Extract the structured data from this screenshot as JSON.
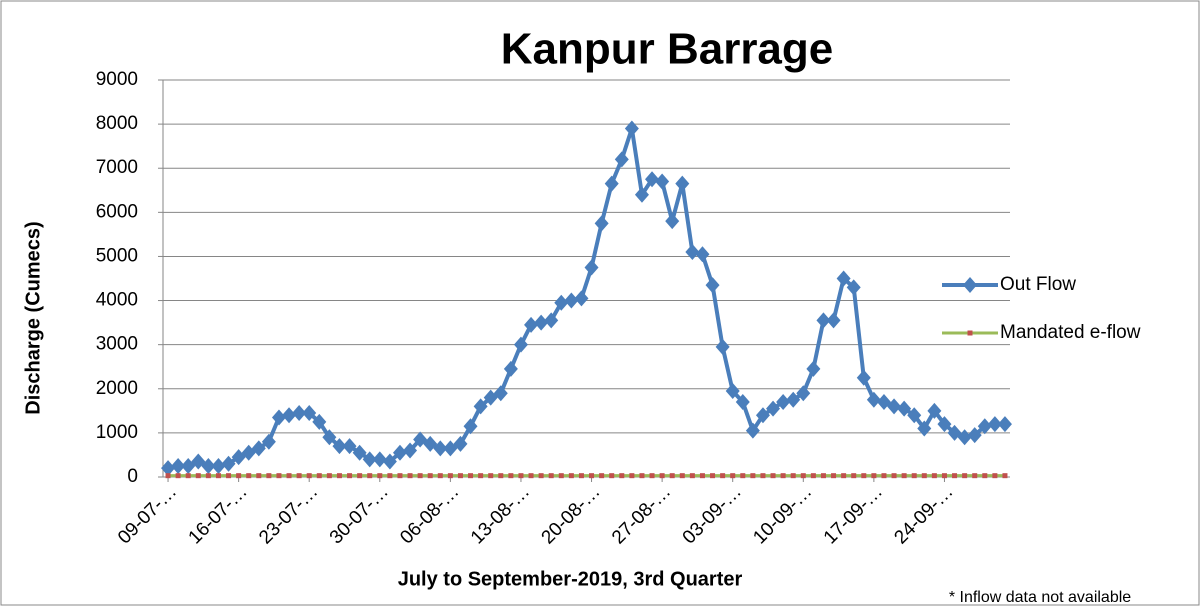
{
  "chart_data": {
    "type": "line",
    "title": "Kanpur Barrage",
    "y_label": "Discharge (Cumecs)",
    "x_label": "July to September-2019, 3rd Quarter",
    "note": "* Inflow data not available",
    "categories": [
      "09-07-…",
      null,
      null,
      null,
      null,
      null,
      null,
      "16-07-…",
      null,
      null,
      null,
      null,
      null,
      null,
      "23-07-…",
      null,
      null,
      null,
      null,
      null,
      null,
      "30-07-…",
      null,
      null,
      null,
      null,
      null,
      null,
      "06-08-…",
      null,
      null,
      null,
      null,
      null,
      null,
      "13-08-…",
      null,
      null,
      null,
      null,
      null,
      null,
      "20-08-…",
      null,
      null,
      null,
      null,
      null,
      null,
      "27-08-…",
      null,
      null,
      null,
      null,
      null,
      null,
      "03-09-…",
      null,
      null,
      null,
      null,
      null,
      null,
      "10-09-…",
      null,
      null,
      null,
      null,
      null,
      null,
      "17-09-…",
      null,
      null,
      null,
      null,
      null,
      null,
      "24-09-…",
      null,
      null,
      null,
      null,
      null,
      null
    ],
    "series": [
      {
        "name": "Out Flow",
        "color": "#4a7ebb",
        "marker": "diamond",
        "values": [
          200,
          250,
          250,
          350,
          250,
          250,
          300,
          450,
          550,
          650,
          800,
          1350,
          1400,
          1450,
          1450,
          1250,
          900,
          700,
          700,
          550,
          400,
          400,
          350,
          550,
          600,
          850,
          750,
          650,
          650,
          750,
          1150,
          1600,
          1800,
          1900,
          2450,
          3000,
          3450,
          3500,
          3550,
          3950,
          4000,
          4050,
          4750,
          5750,
          6650,
          7200,
          7900,
          6400,
          6750,
          6700,
          5800,
          6650,
          5100,
          5050,
          4350,
          2950,
          1950,
          1700,
          1050,
          1400,
          1550,
          1700,
          1750,
          1900,
          2450,
          3550,
          3550,
          4500,
          4300,
          2250,
          1750,
          1700,
          1600,
          1550,
          1400,
          1100,
          1500,
          1200,
          1000,
          900,
          950,
          1150,
          1200,
          1200
        ]
      },
      {
        "name": "Mandated e-flow",
        "color": "#9bbb59",
        "marker_color": "#c0504d",
        "marker": "square",
        "values": [
          30,
          30,
          30,
          30,
          30,
          30,
          30,
          30,
          30,
          30,
          30,
          30,
          30,
          30,
          30,
          30,
          30,
          30,
          30,
          30,
          30,
          30,
          30,
          30,
          30,
          30,
          30,
          30,
          30,
          30,
          30,
          30,
          30,
          30,
          30,
          30,
          30,
          30,
          30,
          30,
          30,
          30,
          30,
          30,
          30,
          30,
          30,
          30,
          30,
          30,
          30,
          30,
          30,
          30,
          30,
          30,
          30,
          30,
          30,
          30,
          30,
          30,
          30,
          30,
          30,
          30,
          30,
          30,
          30,
          30,
          30,
          30,
          30,
          30,
          30,
          30,
          30,
          30,
          30,
          30,
          30,
          30,
          30,
          30
        ]
      }
    ],
    "ylim": [
      0,
      9000
    ],
    "yticks": [
      0,
      1000,
      2000,
      3000,
      4000,
      5000,
      6000,
      7000,
      8000,
      9000
    ],
    "grid": true,
    "legend": "right"
  }
}
